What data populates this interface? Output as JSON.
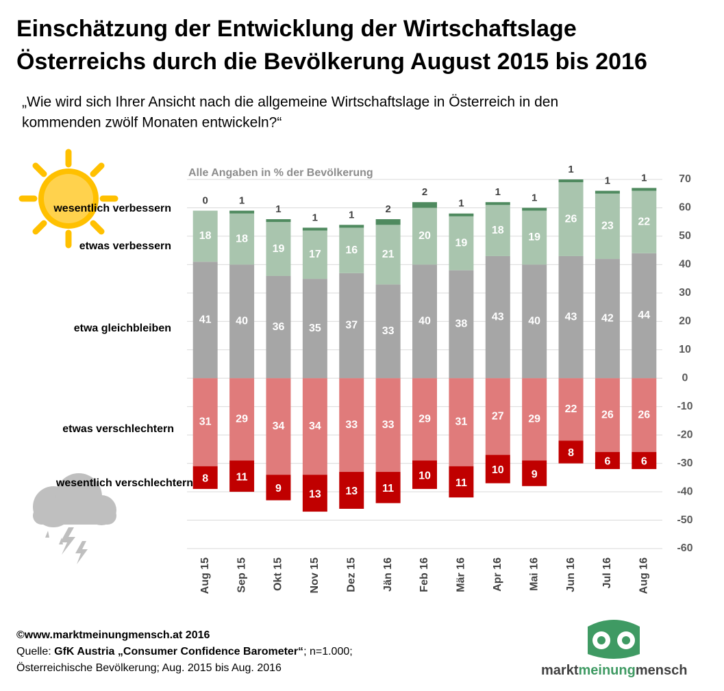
{
  "chart_data": {
    "type": "diverging-stacked-bar",
    "title": [
      "Einschätzung der Entwicklung der Wirtschaftslage",
      "Österreichs durch die Bevölkerung August 2015 bis 2016"
    ],
    "subtitle": [
      "„Wie wird sich Ihrer Ansicht nach die allgemeine Wirtschaftslage in Österreich in den",
      "kommenden  zwölf Monaten entwickeln?“"
    ],
    "annotation": "Alle Angaben in % der Bevölkerung",
    "categories": [
      "Aug 15",
      "Sep 15",
      "Okt 15",
      "Nov 15",
      "Dez 15",
      "Jän 16",
      "Feb 16",
      "Mär 16",
      "Apr 16",
      "Mai 16",
      "Jun 16",
      "Jul 16",
      "Aug 16"
    ],
    "series": [
      {
        "name": "etwa gleichbleiben",
        "color": "#a6a6a6",
        "values": [
          41,
          40,
          36,
          35,
          37,
          33,
          40,
          38,
          43,
          40,
          43,
          42,
          44
        ]
      },
      {
        "name": "etwas verbessern",
        "color": "#a9c5ae",
        "values": [
          18,
          18,
          19,
          17,
          16,
          21,
          20,
          19,
          18,
          19,
          26,
          23,
          22
        ]
      },
      {
        "name": "wesentlich verbessern",
        "color": "#4f8a5f",
        "labels": "above",
        "values": [
          0,
          1,
          1,
          1,
          1,
          2,
          2,
          1,
          1,
          1,
          1,
          1,
          1
        ]
      },
      {
        "name": "etwas verschlechtern",
        "color": "#e07b7b",
        "values": [
          -31,
          -29,
          -34,
          -34,
          -33,
          -33,
          -29,
          -31,
          -27,
          -29,
          -22,
          -26,
          -26
        ],
        "value_labels": [
          "31",
          "29",
          "34",
          "34",
          "33",
          "33",
          "29",
          "31",
          "27",
          "29",
          "22",
          "26",
          "26"
        ]
      },
      {
        "name": "wesentlich verschlechtern",
        "color": "#c00000",
        "values": [
          -8,
          -11,
          -9,
          -13,
          -13,
          -11,
          -10,
          -11,
          -10,
          -9,
          -8,
          -6,
          -6
        ],
        "value_labels": [
          "8",
          "11",
          "9",
          "13",
          "13",
          "11",
          "10",
          "11",
          "10",
          "9",
          "8",
          "6",
          "6"
        ]
      }
    ],
    "ylim": [
      -60,
      70
    ],
    "yticks": [
      -60,
      -50,
      -40,
      -30,
      -20,
      -10,
      0,
      10,
      20,
      30,
      40,
      50,
      60,
      70
    ],
    "grid": true,
    "axis_side": "right"
  },
  "footer": {
    "copyright": "©www.marktmeinungmensch.at 2016",
    "source_prefix": "Quelle: ",
    "source_bold": "GfK Austria „Consumer Confidence Barometer“",
    "source_suffix": "; n=1.000;",
    "line3": "Österreichische Bevölkerung; Aug. 2015 bis Aug. 2016"
  },
  "logo": {
    "part1": "markt",
    "part2": "meinung",
    "part3": "mensch"
  }
}
